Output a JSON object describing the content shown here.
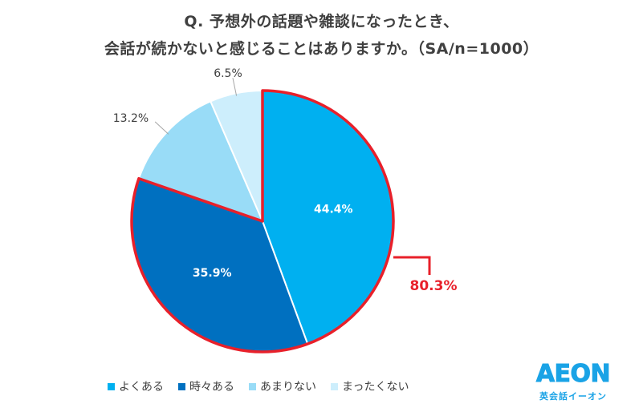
{
  "chart_data": {
    "type": "pie",
    "title_line1": "Q. 予想外の話題や雑談になったとき、",
    "title_line2": "会話が続かないと感じることはありますか。（SA/n=1000）",
    "slices": [
      {
        "label": "よくある",
        "value": 44.4,
        "display": "44.4%",
        "color": "#00b0f0"
      },
      {
        "label": "時々ある",
        "value": 35.9,
        "display": "35.9%",
        "color": "#0070c0"
      },
      {
        "label": "あまりない",
        "value": 13.2,
        "display": "13.2%",
        "color": "#99dcf7"
      },
      {
        "label": "まったくない",
        "value": 6.5,
        "display": "6.5%",
        "color": "#cdeefc"
      }
    ],
    "callout": {
      "display": "80.3%",
      "color": "#e8202a"
    },
    "legend_position": "bottom"
  },
  "logo": {
    "word": "AEON",
    "sub": "英会話イーオン"
  }
}
